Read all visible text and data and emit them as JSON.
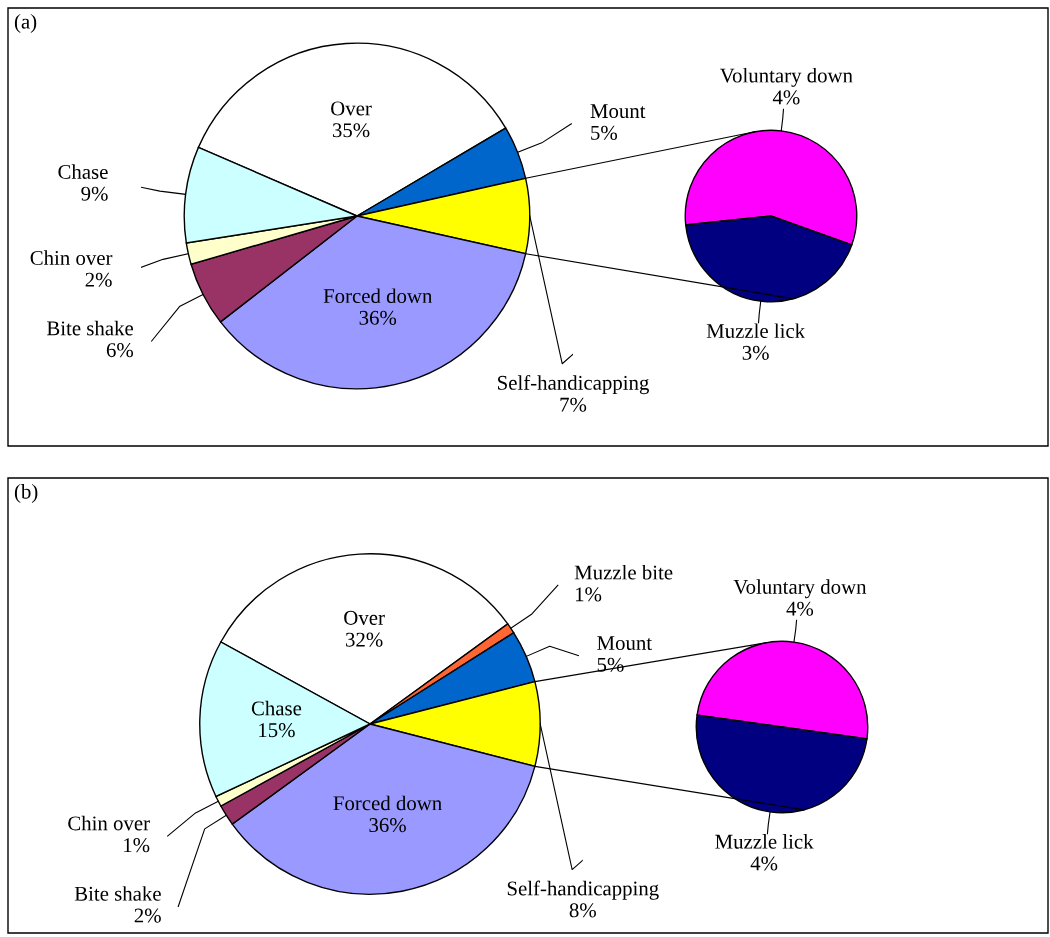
{
  "chart_data": [
    {
      "type": "pie",
      "title": "(a)",
      "categories": [
        "Over",
        "Mount",
        "Self-handicapping",
        "Forced down",
        "Bite shake",
        "Chin over",
        "Chase"
      ],
      "values": [
        35,
        5,
        7,
        36,
        6,
        2,
        9
      ],
      "colors": [
        "#ffffff",
        "#0066cc",
        "#ffff00",
        "#9999ff",
        "#993366",
        "#ffffcc",
        "#ccffff"
      ],
      "value_labels": [
        "35%",
        "5%",
        "7%",
        "36%",
        "6%",
        "2%",
        "9%"
      ]
    },
    {
      "type": "pie",
      "categories": [
        "Voluntary down",
        "Muzzle lick"
      ],
      "values": [
        4,
        3
      ],
      "colors": [
        "#ff00ff",
        "#000080"
      ],
      "value_labels": [
        "4%",
        "3%"
      ]
    },
    {
      "type": "pie",
      "title": "(b)",
      "categories": [
        "Over",
        "Muzzle bite",
        "Mount",
        "Self-handicapping",
        "Forced down",
        "Bite shake",
        "Chin over",
        "Chase"
      ],
      "values": [
        32,
        1,
        5,
        8,
        36,
        2,
        1,
        15
      ],
      "colors": [
        "#ffffff",
        "#ff6633",
        "#0066cc",
        "#ffff00",
        "#9999ff",
        "#993366",
        "#ffffcc",
        "#ccffff"
      ],
      "value_labels": [
        "32%",
        "1%",
        "5%",
        "8%",
        "36%",
        "2%",
        "1%",
        "15%"
      ]
    },
    {
      "type": "pie",
      "categories": [
        "Voluntary down",
        "Muzzle lick"
      ],
      "values": [
        4,
        4
      ],
      "colors": [
        "#ff00ff",
        "#000080"
      ],
      "value_labels": [
        "4%",
        "4%"
      ]
    }
  ]
}
